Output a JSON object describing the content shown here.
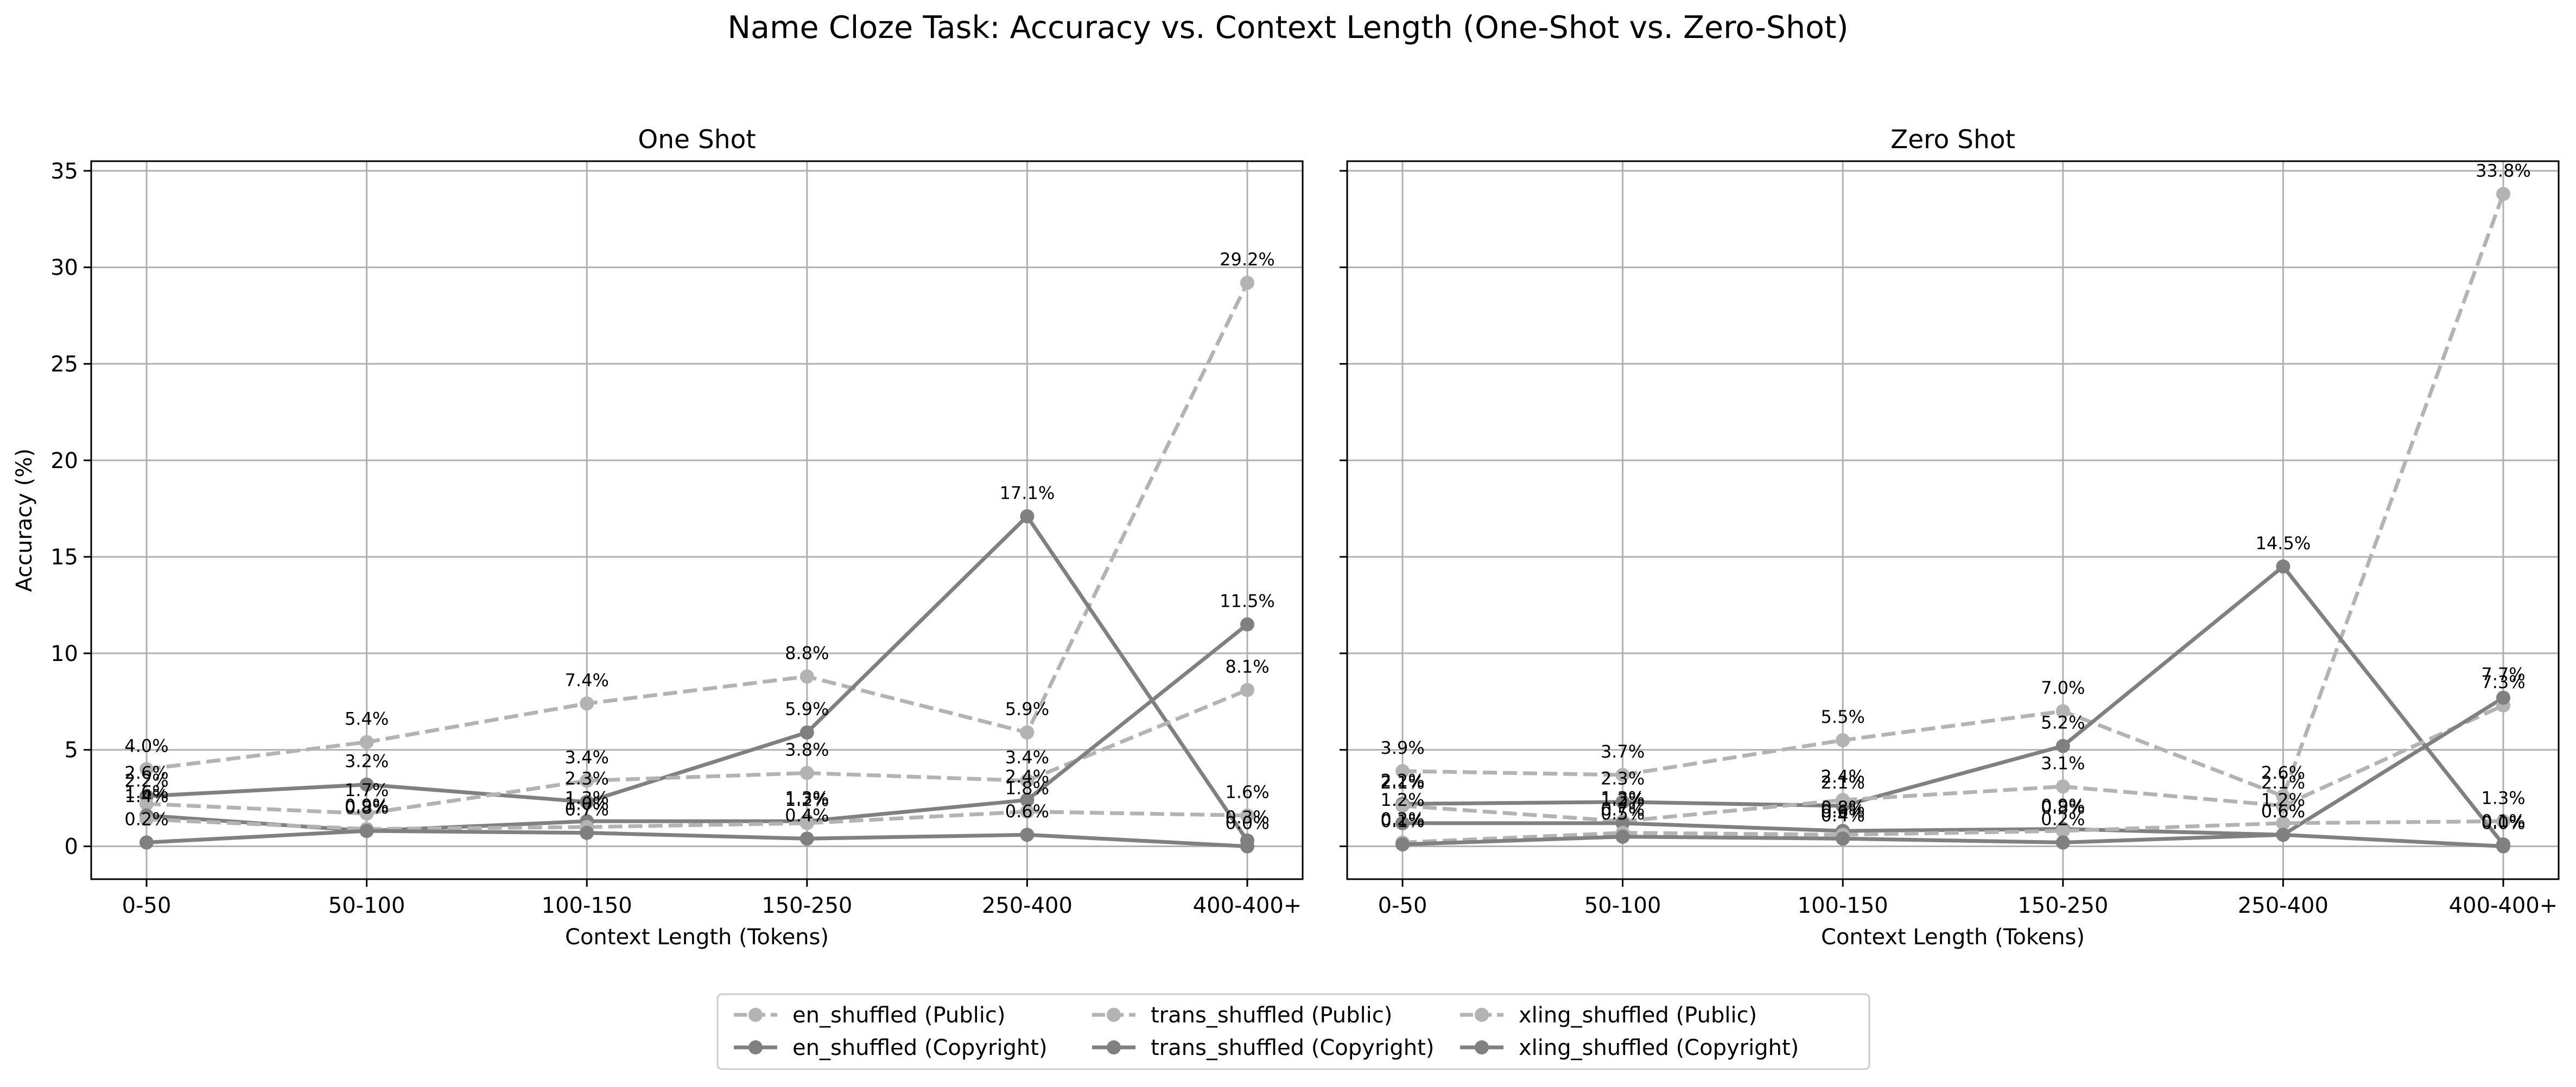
{
  "title": "Name Cloze Task: Accuracy vs. Context Length (One-Shot vs. Zero-Shot)",
  "chart_data": [
    {
      "type": "line",
      "title": "One Shot",
      "xlabel": "Context Length (Tokens)",
      "ylabel": "Accuracy (%)",
      "ylim": [
        -1.7,
        35.5
      ],
      "yticks": [
        0,
        5,
        10,
        15,
        20,
        25,
        30,
        35
      ],
      "grid": true,
      "categories": [
        "0-50",
        "50-100",
        "100-150",
        "150-250",
        "250-400",
        "400-400+"
      ],
      "series": [
        {
          "name": "en_shuffled (Public)",
          "style": "dashed",
          "color": "#b3b3b3",
          "values": [
            4.0,
            5.4,
            7.4,
            8.8,
            5.9,
            29.2
          ],
          "labels": [
            "4.0%",
            "5.4%",
            "7.4%",
            "8.8%",
            "5.9%",
            "29.2%"
          ]
        },
        {
          "name": "en_shuffled (Copyright)",
          "style": "solid",
          "color": "#808080",
          "values": [
            2.6,
            3.2,
            2.3,
            5.9,
            17.1,
            0.3
          ],
          "labels": [
            "2.6%",
            "3.2%",
            "2.3%",
            "5.9%",
            "17.1%",
            "0.3%"
          ]
        },
        {
          "name": "trans_shuffled (Public)",
          "style": "dashed",
          "color": "#b3b3b3",
          "values": [
            2.2,
            1.7,
            3.4,
            3.8,
            3.4,
            8.1
          ],
          "labels": [
            "2.2%",
            "1.7%",
            "3.4%",
            "3.8%",
            "3.4%",
            "8.1%"
          ]
        },
        {
          "name": "trans_shuffled (Copyright)",
          "style": "solid",
          "color": "#808080",
          "values": [
            1.6,
            0.8,
            1.3,
            1.3,
            2.4,
            11.5
          ],
          "labels": [
            "1.6%",
            "0.8%",
            "1.3%",
            "1.3%",
            "2.4%",
            "11.5%"
          ]
        },
        {
          "name": "xling_shuffled (Public)",
          "style": "dashed",
          "color": "#b3b3b3",
          "values": [
            1.4,
            0.9,
            1.0,
            1.2,
            1.8,
            1.6
          ],
          "labels": [
            "1.4%",
            "0.9%",
            "1.0%",
            "1.2%",
            "1.8%",
            "1.6%"
          ]
        },
        {
          "name": "xling_shuffled (Copyright)",
          "style": "solid",
          "color": "#808080",
          "values": [
            0.2,
            0.8,
            0.7,
            0.4,
            0.6,
            0.0
          ],
          "labels": [
            "0.2%",
            "0.8%",
            "0.7%",
            "0.4%",
            "0.6%",
            "0.0%"
          ]
        }
      ]
    },
    {
      "type": "line",
      "title": "Zero Shot",
      "xlabel": "Context Length (Tokens)",
      "ylabel": "",
      "ylim": [
        -1.7,
        35.5
      ],
      "yticks": [
        0,
        5,
        10,
        15,
        20,
        25,
        30,
        35
      ],
      "grid": true,
      "categories": [
        "0-50",
        "50-100",
        "100-150",
        "150-250",
        "250-400",
        "400-400+"
      ],
      "series": [
        {
          "name": "en_shuffled (Public)",
          "style": "dashed",
          "color": "#b3b3b3",
          "values": [
            3.9,
            3.7,
            5.5,
            7.0,
            2.6,
            33.8
          ],
          "labels": [
            "3.9%",
            "3.7%",
            "5.5%",
            "7.0%",
            "2.6%",
            "33.8%"
          ]
        },
        {
          "name": "en_shuffled (Copyright)",
          "style": "solid",
          "color": "#808080",
          "values": [
            2.2,
            2.3,
            2.1,
            5.2,
            14.5,
            0.1
          ],
          "labels": [
            "2.2%",
            "2.3%",
            "2.1%",
            "5.2%",
            "14.5%",
            "0.1%"
          ]
        },
        {
          "name": "trans_shuffled (Public)",
          "style": "dashed",
          "color": "#b3b3b3",
          "values": [
            2.1,
            1.3,
            2.4,
            3.1,
            2.1,
            7.3
          ],
          "labels": [
            "2.1%",
            "1.3%",
            "2.4%",
            "3.1%",
            "2.1%",
            "7.3%"
          ]
        },
        {
          "name": "trans_shuffled (Copyright)",
          "style": "solid",
          "color": "#808080",
          "values": [
            1.2,
            1.2,
            0.8,
            0.9,
            0.6,
            7.7
          ],
          "labels": [
            "1.2%",
            "1.2%",
            "0.8%",
            "0.9%",
            "0.6%",
            "7.7%"
          ]
        },
        {
          "name": "xling_shuffled (Public)",
          "style": "dashed",
          "color": "#b3b3b3",
          "values": [
            0.2,
            0.7,
            0.6,
            0.8,
            1.2,
            1.3
          ],
          "labels": [
            "0.2%",
            "0.7%",
            "0.6%",
            "0.8%",
            "1.2%",
            "1.3%"
          ]
        },
        {
          "name": "xling_shuffled (Copyright)",
          "style": "solid",
          "color": "#808080",
          "values": [
            0.1,
            0.5,
            0.4,
            0.2,
            0.6,
            0.0
          ],
          "labels": [
            "0.1%",
            "0.5%",
            "0.4%",
            "0.2%",
            "0.6%",
            "0.0%"
          ]
        }
      ]
    }
  ],
  "legend": {
    "placement": "bottom-center",
    "items": [
      {
        "label": "en_shuffled (Public)",
        "style": "dashed",
        "color": "#b3b3b3"
      },
      {
        "label": "en_shuffled (Copyright)",
        "style": "solid",
        "color": "#808080"
      },
      {
        "label": "trans_shuffled (Public)",
        "style": "dashed",
        "color": "#b3b3b3"
      },
      {
        "label": "trans_shuffled (Copyright)",
        "style": "solid",
        "color": "#808080"
      },
      {
        "label": "xling_shuffled (Public)",
        "style": "dashed",
        "color": "#b3b3b3"
      },
      {
        "label": "xling_shuffled (Copyright)",
        "style": "solid",
        "color": "#808080"
      }
    ]
  }
}
